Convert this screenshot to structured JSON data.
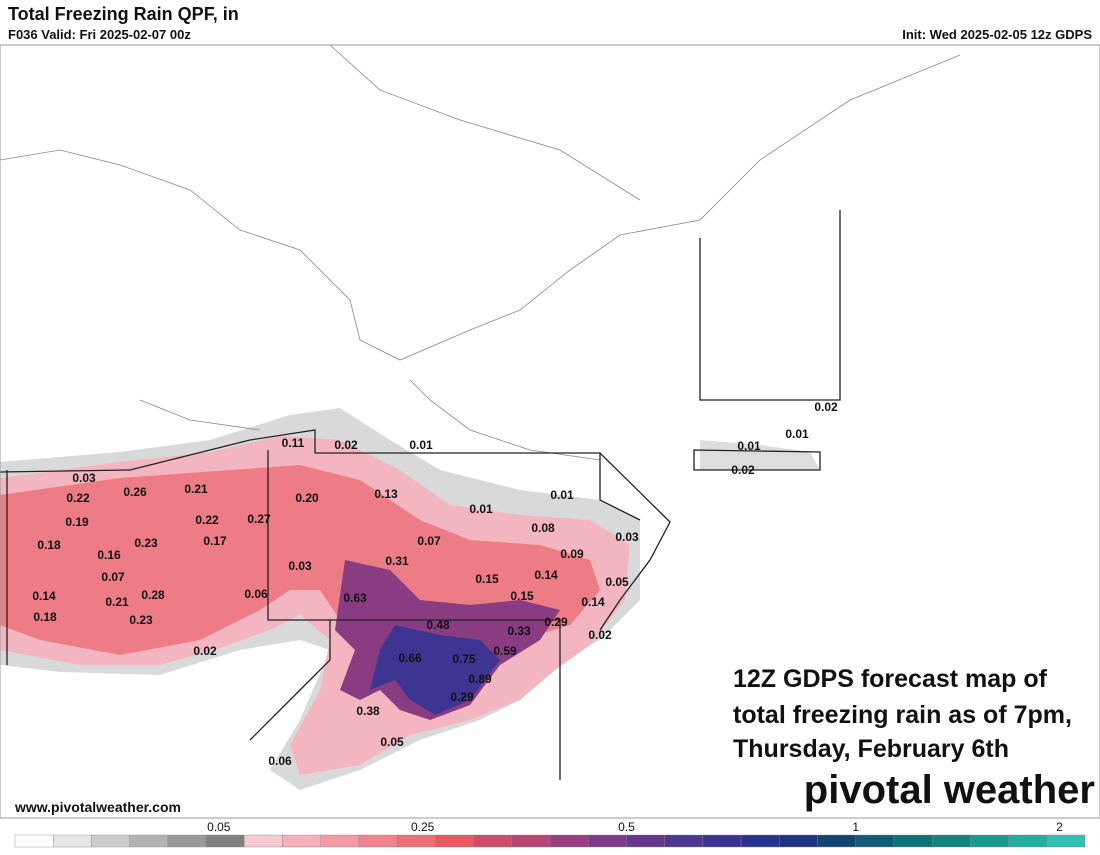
{
  "header": {
    "title": "Total Freezing Rain QPF, in",
    "valid": "F036 Valid: Fri 2025-02-07 00z",
    "init": "Init: Wed 2025-02-05 12z GDPS"
  },
  "points": [
    "0.11",
    "0.02",
    "0.01",
    "0.03",
    "0.22",
    "0.26",
    "0.21",
    "0.20",
    "0.13",
    "0.01",
    "0.01",
    "0.19",
    "0.22",
    "0.27",
    "0.08",
    "0.18",
    "0.16",
    "0.23",
    "0.17",
    "0.07",
    "0.03",
    "0.09",
    "0.31",
    "0.03",
    "0.07",
    "0.15",
    "0.14",
    "0.05",
    "0.14",
    "0.21",
    "0.28",
    "0.06",
    "0.63",
    "0.15",
    "0.14",
    "0.18",
    "0.23",
    "0.48",
    "0.29",
    "0.33",
    "0.02",
    "0.02",
    "0.59",
    "0.66",
    "0.75",
    "0.89",
    "0.29",
    "0.38",
    "0.05",
    "0.06",
    "0.02",
    "0.01",
    "0.01",
    "0.02"
  ],
  "caption": [
    "12Z GDPS forecast map of",
    "total freezing rain as of 7pm,",
    "Thursday, February 6th"
  ],
  "logo": "pivotal weather",
  "website": "www.pivotalweather.com",
  "colorbar": {
    "colors": [
      "#ffffff",
      "#e6e6e6",
      "#cccccc",
      "#b3b3b3",
      "#999999",
      "#808080",
      "#f6c8d0",
      "#f4b0bb",
      "#f29aa6",
      "#ef8490",
      "#ec6e78",
      "#ea5860",
      "#cf4d6b",
      "#b44776",
      "#993f80",
      "#7e3a88",
      "#65378f",
      "#4e3592",
      "#3a3491",
      "#29338d",
      "#1c3283",
      "#13446f",
      "#105a74",
      "#107078",
      "#12857d",
      "#179a8a",
      "#23ad9e",
      "#33bfb3"
    ],
    "ticks": [
      "0.05",
      "0.25",
      "0.5",
      "1",
      "2"
    ]
  }
}
